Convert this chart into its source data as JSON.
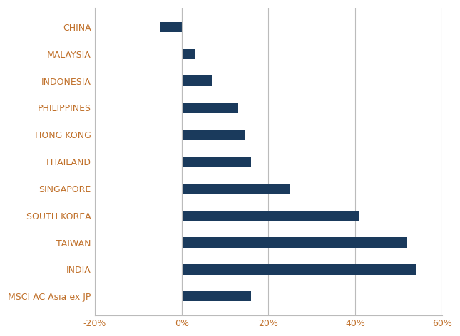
{
  "categories": [
    "CHINA",
    "MALAYSIA",
    "INDONESIA",
    "PHILIPPINES",
    "HONG KONG",
    "THAILAND",
    "SINGAPORE",
    "SOUTH KOREA",
    "TAIWAN",
    "INDIA",
    "MSCI AC Asia ex JP"
  ],
  "values": [
    -5.0,
    3.0,
    7.0,
    13.0,
    14.5,
    16.0,
    25.0,
    41.0,
    52.0,
    54.0,
    16.0
  ],
  "bar_color": "#1a3a5c",
  "xlim": [
    -20,
    60
  ],
  "xticks": [
    -20,
    0,
    20,
    40,
    60
  ],
  "xtick_labels": [
    "-20%",
    "0%",
    "20%",
    "40%",
    "60%"
  ],
  "background_color": "#ffffff",
  "grid_color": "#bbbbbb",
  "label_color": "#c0702a",
  "label_fontsize": 9.0,
  "bar_height": 0.38
}
